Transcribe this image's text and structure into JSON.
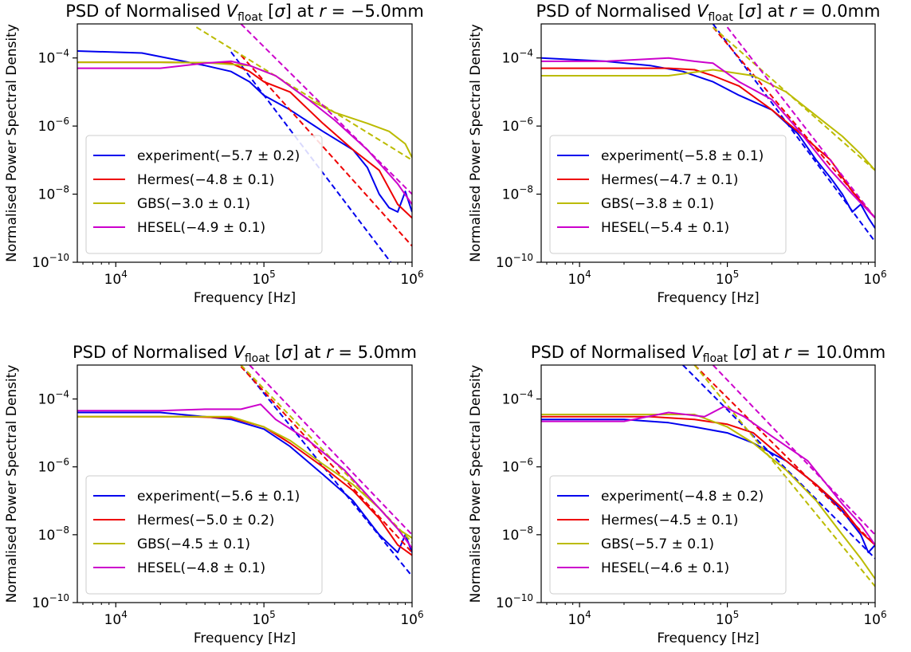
{
  "chart_data": [
    {
      "type": "line",
      "title_prefix": "PSD of Normalised ",
      "title_var": "V",
      "title_sub": "float",
      "title_mid": " [",
      "title_sigma": "σ",
      "title_mid2": "] at ",
      "title_r": "r",
      "title_suffix": " = −5.0mm",
      "xlabel": "Frequency [Hz]",
      "ylabel": "Normalised Power Spectral Density",
      "x_scale": "log",
      "y_scale": "log",
      "xlim": [
        5500,
        1000000
      ],
      "ylim": [
        1e-10,
        0.001
      ],
      "x_ticks": [
        {
          "value": 10000,
          "base": "10",
          "exp": "4"
        },
        {
          "value": 100000,
          "base": "10",
          "exp": "5"
        },
        {
          "value": 1000000,
          "base": "10",
          "exp": "6"
        }
      ],
      "y_ticks": [
        {
          "value": 1e-10,
          "base": "10",
          "exp": "−10"
        },
        {
          "value": 1e-08,
          "base": "10",
          "exp": "−8"
        },
        {
          "value": 1e-06,
          "base": "10",
          "exp": "−6"
        },
        {
          "value": 0.0001,
          "base": "10",
          "exp": "−4"
        }
      ],
      "legend_position": "lower-left",
      "series": [
        {
          "name": "experiment(−5.7 ± 0.2)",
          "color": "#0000ee",
          "x": [
            5500,
            15000,
            40000,
            60000,
            80000,
            100000,
            150000,
            250000,
            400000,
            500000,
            600000,
            700000,
            800000,
            900000,
            1000000
          ],
          "y": [
            0.00016,
            0.00014,
            6e-05,
            4e-05,
            2e-05,
            8e-06,
            3e-06,
            7e-07,
            2e-07,
            6e-08,
            1e-08,
            4e-09,
            3e-09,
            1.2e-08,
            3e-09
          ],
          "fit": {
            "x": [
              60000,
              1000000
            ],
            "y": [
              0.00015,
              1.5e-11
            ]
          }
        },
        {
          "name": "Hermes(−4.8 ± 0.1)",
          "color": "#ee0000",
          "x": [
            5500,
            20000,
            40000,
            60000,
            80000,
            100000,
            150000,
            250000,
            400000,
            600000,
            800000,
            1000000
          ],
          "y": [
            7.5e-05,
            7.5e-05,
            7.2e-05,
            7e-05,
            4e-05,
            2e-05,
            1e-05,
            1.2e-06,
            2e-07,
            5e-08,
            5e-09,
            2e-09
          ],
          "fit": {
            "x": [
              70000,
              1000000
            ],
            "y": [
              0.00012,
              3e-10
            ]
          }
        },
        {
          "name": "GBS(−3.0 ± 0.1)",
          "color": "#bbbb00",
          "x": [
            5500,
            20000,
            40000,
            80000,
            120000,
            200000,
            300000,
            500000,
            700000,
            900000,
            1000000
          ],
          "y": [
            7.5e-05,
            7.5e-05,
            7.3e-05,
            6e-05,
            3e-05,
            6e-06,
            2.5e-06,
            1.2e-06,
            7e-07,
            3e-07,
            1.2e-07
          ],
          "fit": {
            "x": [
              35000,
              1000000
            ],
            "y": [
              0.0008,
              1e-07
            ]
          }
        },
        {
          "name": "HESEL(−4.9 ± 0.1)",
          "color": "#cc00cc",
          "x": [
            5500,
            20000,
            40000,
            60000,
            80000,
            120000,
            200000,
            300000,
            500000,
            800000,
            1000000
          ],
          "y": [
            5e-05,
            5e-05,
            7e-05,
            8e-05,
            6e-05,
            3e-05,
            6e-06,
            1.5e-06,
            2e-07,
            2e-08,
            5e-09
          ],
          "fit": {
            "x": [
              70000,
              1000000
            ],
            "y": [
              0.001,
              1e-08
            ]
          }
        }
      ]
    },
    {
      "type": "line",
      "title_prefix": "PSD of Normalised ",
      "title_var": "V",
      "title_sub": "float",
      "title_mid": " [",
      "title_sigma": "σ",
      "title_mid2": "] at ",
      "title_r": "r",
      "title_suffix": " = 0.0mm",
      "xlabel": "Frequency [Hz]",
      "ylabel": "Normalised Power Spectral Density",
      "x_scale": "log",
      "y_scale": "log",
      "xlim": [
        5500,
        1000000
      ],
      "ylim": [
        1e-10,
        0.001
      ],
      "x_ticks": [
        {
          "value": 10000,
          "base": "10",
          "exp": "4"
        },
        {
          "value": 100000,
          "base": "10",
          "exp": "5"
        },
        {
          "value": 1000000,
          "base": "10",
          "exp": "6"
        }
      ],
      "y_ticks": [
        {
          "value": 1e-10,
          "base": "10",
          "exp": "−10"
        },
        {
          "value": 1e-08,
          "base": "10",
          "exp": "−8"
        },
        {
          "value": 1e-06,
          "base": "10",
          "exp": "−6"
        },
        {
          "value": 0.0001,
          "base": "10",
          "exp": "−4"
        }
      ],
      "legend_position": "lower-left",
      "series": [
        {
          "name": "experiment(−5.8 ± 0.1)",
          "color": "#0000ee",
          "x": [
            5500,
            15000,
            30000,
            50000,
            80000,
            120000,
            200000,
            300000,
            400000,
            500000,
            600000,
            700000,
            800000,
            900000,
            1000000
          ],
          "y": [
            0.0001,
            8e-05,
            6e-05,
            4e-05,
            2e-05,
            8e-06,
            3e-06,
            6e-07,
            1e-07,
            3e-08,
            1e-08,
            3e-09,
            5e-09,
            2e-09,
            1e-09
          ],
          "fit": {
            "x": [
              80000,
              1000000
            ],
            "y": [
              0.001,
              4e-10
            ]
          }
        },
        {
          "name": "Hermes(−4.7 ± 0.1)",
          "color": "#ee0000",
          "x": [
            5500,
            20000,
            40000,
            60000,
            80000,
            120000,
            200000,
            300000,
            500000,
            700000,
            1000000
          ],
          "y": [
            5e-05,
            5e-05,
            5e-05,
            4.5e-05,
            3e-05,
            1.5e-05,
            3e-06,
            7e-07,
            1e-07,
            1.2e-08,
            2e-09
          ],
          "fit": {
            "x": [
              80000,
              1000000
            ],
            "y": [
              0.0008,
              2e-09
            ]
          }
        },
        {
          "name": "GBS(−3.8 ± 0.1)",
          "color": "#bbbb00",
          "x": [
            5500,
            20000,
            40000,
            80000,
            150000,
            250000,
            400000,
            600000,
            800000,
            1000000
          ],
          "y": [
            3e-05,
            3e-05,
            3e-05,
            4.5e-05,
            3e-05,
            1e-05,
            2e-06,
            5e-07,
            1.5e-07,
            5e-08
          ],
          "fit": {
            "x": [
              80000,
              1000000
            ],
            "y": [
              0.0008,
              5e-08
            ]
          }
        },
        {
          "name": "HESEL(−5.4 ± 0.1)",
          "color": "#cc00cc",
          "x": [
            5500,
            15000,
            25000,
            40000,
            60000,
            80000,
            120000,
            200000,
            300000,
            500000,
            700000,
            1000000
          ],
          "y": [
            8e-05,
            8e-05,
            9e-05,
            0.0001,
            8e-05,
            7e-05,
            2e-05,
            6e-06,
            8e-07,
            5e-08,
            1e-08,
            2e-09
          ],
          "fit": {
            "x": [
              100000,
              1000000
            ],
            "y": [
              0.0008,
              2e-09
            ]
          }
        }
      ]
    },
    {
      "type": "line",
      "title_prefix": "PSD of Normalised ",
      "title_var": "V",
      "title_sub": "float",
      "title_mid": " [",
      "title_sigma": "σ",
      "title_mid2": "] at ",
      "title_r": "r",
      "title_suffix": " = 5.0mm",
      "xlabel": "Frequency [Hz]",
      "ylabel": "Normalised Power Spectral Density",
      "x_scale": "log",
      "y_scale": "log",
      "xlim": [
        5500,
        1000000
      ],
      "ylim": [
        1e-10,
        0.001
      ],
      "x_ticks": [
        {
          "value": 10000,
          "base": "10",
          "exp": "4"
        },
        {
          "value": 100000,
          "base": "10",
          "exp": "5"
        },
        {
          "value": 1000000,
          "base": "10",
          "exp": "6"
        }
      ],
      "y_ticks": [
        {
          "value": 1e-10,
          "base": "10",
          "exp": "−10"
        },
        {
          "value": 1e-08,
          "base": "10",
          "exp": "−8"
        },
        {
          "value": 1e-06,
          "base": "10",
          "exp": "−6"
        },
        {
          "value": 0.0001,
          "base": "10",
          "exp": "−4"
        }
      ],
      "legend_position": "lower-left",
      "series": [
        {
          "name": "experiment(−5.6 ± 0.1)",
          "color": "#0000ee",
          "x": [
            5500,
            20000,
            40000,
            60000,
            100000,
            150000,
            250000,
            400000,
            600000,
            800000,
            900000,
            1000000
          ],
          "y": [
            4e-05,
            4e-05,
            3e-05,
            2.5e-05,
            1.3e-05,
            4e-06,
            6e-07,
            1e-07,
            1e-08,
            3e-09,
            1e-08,
            3e-09
          ],
          "fit": {
            "x": [
              70000,
              1000000
            ],
            "y": [
              0.001,
              6e-10
            ]
          }
        },
        {
          "name": "Hermes(−5.0 ± 0.2)",
          "color": "#ee0000",
          "x": [
            5500,
            30000,
            60000,
            100000,
            150000,
            250000,
            400000,
            600000,
            800000,
            1000000
          ],
          "y": [
            3e-05,
            3e-05,
            2.8e-05,
            1.5e-05,
            5e-06,
            1e-06,
            2e-07,
            3e-08,
            5e-09,
            2.5e-09
          ],
          "fit": {
            "x": [
              70000,
              1000000
            ],
            "y": [
              0.0009,
              3e-09
            ]
          }
        },
        {
          "name": "GBS(−4.5 ± 0.1)",
          "color": "#bbbb00",
          "x": [
            5500,
            30000,
            60000,
            100000,
            150000,
            250000,
            400000,
            600000,
            800000,
            1000000
          ],
          "y": [
            3e-05,
            3e-05,
            3e-05,
            1.5e-05,
            6e-06,
            1.2e-06,
            3e-07,
            6e-08,
            1.5e-08,
            8e-09
          ],
          "fit": {
            "x": [
              70000,
              1000000
            ],
            "y": [
              0.001,
              6e-09
            ]
          }
        },
        {
          "name": "HESEL(−4.8 ± 0.1)",
          "color": "#cc00cc",
          "x": [
            5500,
            20000,
            40000,
            70000,
            95000,
            120000,
            200000,
            350000,
            600000,
            800000,
            1000000
          ],
          "y": [
            4.5e-05,
            4.5e-05,
            5e-05,
            5e-05,
            7e-05,
            2.5e-05,
            6e-06,
            8e-07,
            6e-08,
            1.5e-08,
            4e-09
          ],
          "fit": {
            "x": [
              80000,
              1000000
            ],
            "y": [
              0.001,
              1e-08
            ]
          }
        }
      ]
    },
    {
      "type": "line",
      "title_prefix": "PSD of Normalised ",
      "title_var": "V",
      "title_sub": "float",
      "title_mid": " [",
      "title_sigma": "σ",
      "title_mid2": "] at ",
      "title_r": "r",
      "title_suffix": " = 10.0mm",
      "xlabel": "Frequency [Hz]",
      "ylabel": "Normalised Power Spectral Density",
      "x_scale": "log",
      "y_scale": "log",
      "xlim": [
        5500,
        1000000
      ],
      "ylim": [
        1e-10,
        0.001
      ],
      "x_ticks": [
        {
          "value": 10000,
          "base": "10",
          "exp": "4"
        },
        {
          "value": 100000,
          "base": "10",
          "exp": "5"
        },
        {
          "value": 1000000,
          "base": "10",
          "exp": "6"
        }
      ],
      "y_ticks": [
        {
          "value": 1e-10,
          "base": "10",
          "exp": "−10"
        },
        {
          "value": 1e-08,
          "base": "10",
          "exp": "−8"
        },
        {
          "value": 1e-06,
          "base": "10",
          "exp": "−6"
        },
        {
          "value": 0.0001,
          "base": "10",
          "exp": "−4"
        }
      ],
      "legend_position": "lower-left",
      "series": [
        {
          "name": "experiment(−4.8 ± 0.2)",
          "color": "#0000ee",
          "x": [
            5500,
            20000,
            40000,
            60000,
            100000,
            150000,
            250000,
            400000,
            600000,
            800000,
            900000,
            1000000
          ],
          "y": [
            2.5e-05,
            2.5e-05,
            2e-05,
            1.5e-05,
            1e-05,
            5e-06,
            1.5e-06,
            3e-07,
            5e-08,
            1e-08,
            3e-09,
            5e-09
          ],
          "fit": {
            "x": [
              50000,
              1000000
            ],
            "y": [
              0.001,
              2e-09
            ]
          }
        },
        {
          "name": "Hermes(−4.5 ± 0.1)",
          "color": "#ee0000",
          "x": [
            5500,
            30000,
            60000,
            100000,
            150000,
            250000,
            400000,
            600000,
            800000,
            1000000
          ],
          "y": [
            3e-05,
            3e-05,
            2.5e-05,
            1.8e-05,
            1e-05,
            1.5e-06,
            3e-07,
            6e-08,
            1.2e-08,
            5e-09
          ],
          "fit": {
            "x": [
              60000,
              1000000
            ],
            "y": [
              0.001,
              5e-09
            ]
          }
        },
        {
          "name": "GBS(−5.7 ± 0.1)",
          "color": "#bbbb00",
          "x": [
            5500,
            30000,
            60000,
            100000,
            150000,
            250000,
            400000,
            600000,
            800000,
            1000000
          ],
          "y": [
            3.5e-05,
            3.5e-05,
            3.5e-05,
            1.5e-05,
            5e-06,
            8e-07,
            1e-07,
            1e-08,
            2e-09,
            5e-10
          ],
          "fit": {
            "x": [
              60000,
              1000000
            ],
            "y": [
              0.001,
              3e-10
            ]
          }
        },
        {
          "name": "HESEL(−4.6 ± 0.1)",
          "color": "#cc00cc",
          "x": [
            5500,
            20000,
            40000,
            70000,
            95000,
            130000,
            200000,
            350000,
            600000,
            800000,
            1000000
          ],
          "y": [
            2.2e-05,
            2.2e-05,
            4e-05,
            3e-05,
            6e-05,
            3e-05,
            8e-06,
            1.5e-06,
            8e-08,
            2e-08,
            5e-09
          ],
          "fit": {
            "x": [
              80000,
              1000000
            ],
            "y": [
              0.001,
              1e-08
            ]
          }
        }
      ]
    }
  ]
}
